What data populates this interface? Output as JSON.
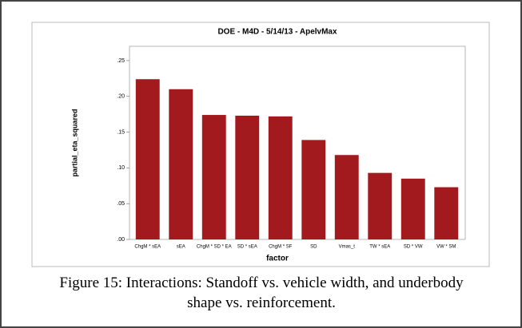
{
  "chart_data": {
    "type": "bar",
    "title": "DOE - M4D - 5/14/13 - ApelvMax",
    "x_label": "factor",
    "y_label": "partial_eta_squared",
    "categories": [
      "ChgM * sEA",
      "sEA",
      "ChgM * SD * EA",
      "SD * sEA",
      "ChgM * SF",
      "SD",
      "Vmas_t",
      "TW * sEA",
      "SD * VW",
      "VW * SM"
    ],
    "values": [
      0.224,
      0.21,
      0.174,
      0.173,
      0.172,
      0.139,
      0.118,
      0.093,
      0.085,
      0.073
    ],
    "color": "#a31a1e",
    "ylim": [
      0,
      0.27
    ],
    "yticks": [
      {
        "value": 0,
        "label": ".00"
      },
      {
        "value": 0.05,
        "label": ".05"
      },
      {
        "value": 0.1,
        "label": ".10"
      },
      {
        "value": 0.15,
        "label": ".15"
      },
      {
        "value": 0.2,
        "label": ".20"
      },
      {
        "value": 0.25,
        "label": ".25"
      }
    ],
    "grid": false
  },
  "caption": "Figure 15: Interactions: Standoff vs. vehicle width, and underbody shape vs. reinforcement."
}
